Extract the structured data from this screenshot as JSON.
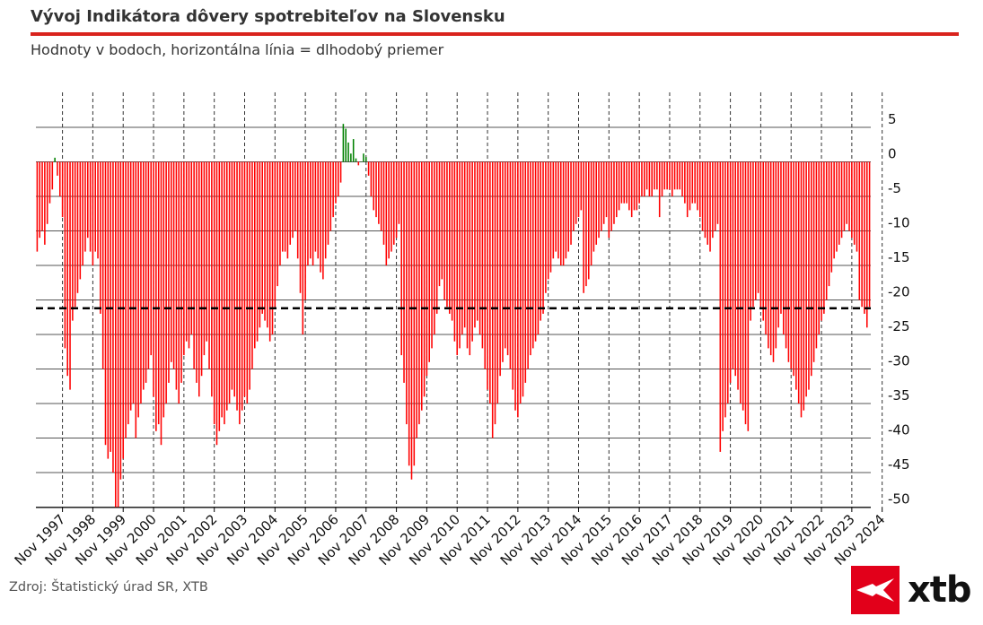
{
  "title": "Vývoj Indikátora dôvery spotrebiteľov na Slovensku",
  "subtitle": "Hodnoty v bodoch, horizontálna línia = dlhodobý priemer",
  "source": "Zdroj: Štatistický úrad SR, XTB",
  "logo": {
    "text": "xtb",
    "icon": "xtb-logo-icon"
  },
  "colors": {
    "accent": "#d9231d",
    "negative": "#ff0000",
    "positive": "#008000",
    "brand": "#e2001a"
  },
  "chart_data": {
    "type": "bar",
    "frequency": "monthly",
    "x_start": "1997-01",
    "x_end": "2024-12",
    "xlabel": "",
    "ylabel": "",
    "ylim": [
      -51,
      6
    ],
    "yticks": [
      5,
      0,
      -5,
      -10,
      -15,
      -20,
      -25,
      -30,
      -35,
      -40,
      -45,
      -50
    ],
    "y_axis_position": "right",
    "x_tick_labels": [
      "Nov 1997",
      "Nov 1998",
      "Nov 1999",
      "Nov 2000",
      "Nov 2001",
      "Nov 2002",
      "Nov 2003",
      "Nov 2004",
      "Nov 2005",
      "Nov 2006",
      "Nov 2007",
      "Nov 2008",
      "Nov 2009",
      "Nov 2010",
      "Nov 2011",
      "Nov 2012",
      "Nov 2013",
      "Nov 2014",
      "Nov 2015",
      "Nov 2016",
      "Nov 2017",
      "Nov 2018",
      "Nov 2019",
      "Nov 2020",
      "Nov 2021",
      "Nov 2022",
      "Nov 2023",
      "Nov 2024"
    ],
    "long_term_average": -21.2,
    "grid": true,
    "legend": "none",
    "values": [
      -13,
      -11,
      -10,
      -12,
      -9,
      -6,
      -4,
      0.6,
      -2,
      -5,
      -8,
      -27,
      -31,
      -33,
      -23,
      -21,
      -19,
      -17,
      -15,
      -13,
      -11,
      -13,
      -15,
      -13,
      -14,
      -22,
      -30,
      -41,
      -43,
      -42,
      -45,
      -50,
      -50,
      -46,
      -43,
      -40,
      -38,
      -36,
      -35,
      -40,
      -37,
      -35,
      -33,
      -32,
      -30,
      -28,
      -34,
      -39,
      -38,
      -41,
      -37,
      -35,
      -32,
      -29,
      -30,
      -33,
      -35,
      -32,
      -28,
      -26,
      -27,
      -25,
      -30,
      -32,
      -34,
      -31,
      -28,
      -26,
      -30,
      -34,
      -38,
      -41,
      -39,
      -37,
      -38,
      -36,
      -35,
      -33,
      -34,
      -36,
      -38,
      -36,
      -34,
      -35,
      -33,
      -30,
      -27,
      -26,
      -24,
      -22,
      -23,
      -24,
      -26,
      -25,
      -21,
      -18,
      -15,
      -13,
      -13,
      -14,
      -12,
      -11,
      -10,
      -14,
      -19,
      -25,
      -20,
      -15,
      -14,
      -15,
      -13,
      -14,
      -16,
      -17,
      -14,
      -12,
      -10,
      -8,
      -6,
      -5,
      -3,
      5.5,
      4.8,
      2.8,
      1.2,
      3.3,
      0.5,
      -0.5,
      0,
      1.2,
      0.7,
      -2,
      -5,
      -7,
      -8,
      -9,
      -10,
      -12,
      -15,
      -14,
      -13,
      -12,
      -11,
      -9,
      -28,
      -32,
      -38,
      -44,
      -46,
      -44,
      -40,
      -38,
      -36,
      -34,
      -31,
      -29,
      -27,
      -25,
      -22,
      -18,
      -17,
      -20,
      -21,
      -22,
      -23,
      -26,
      -28,
      -27,
      -25,
      -24,
      -27,
      -28,
      -26,
      -24,
      -23,
      -25,
      -27,
      -30,
      -33,
      -35,
      -40,
      -38,
      -35,
      -31,
      -29,
      -27,
      -28,
      -30,
      -33,
      -36,
      -37,
      -35,
      -34,
      -32,
      -30,
      -28,
      -27,
      -26,
      -25,
      -23,
      -22,
      -19,
      -17,
      -16,
      -14,
      -13,
      -14,
      -15,
      -15,
      -14,
      -13,
      -12,
      -10,
      -9,
      -8,
      -7,
      -19,
      -18,
      -17,
      -15,
      -13,
      -12,
      -11,
      -10,
      -9,
      -8,
      -11,
      -10,
      -9,
      -8,
      -7,
      -6,
      -6,
      -6,
      -7,
      -8,
      -7,
      -7,
      -6,
      -5,
      -5,
      -4,
      -5,
      -5,
      -4,
      -4,
      -8,
      -5,
      -4,
      -4,
      -4,
      -5,
      -4,
      -4,
      -4,
      -5,
      -6,
      -8,
      -7,
      -6,
      -6,
      -7,
      -8,
      -10,
      -11,
      -12,
      -13,
      -11,
      -10,
      -9,
      -42,
      -39,
      -37,
      -35,
      -32,
      -30,
      -31,
      -33,
      -35,
      -36,
      -38,
      -39,
      -23,
      -21,
      -20,
      -19,
      -21,
      -23,
      -25,
      -27,
      -28,
      -29,
      -27,
      -24,
      -22,
      -25,
      -27,
      -29,
      -30,
      -31,
      -33,
      -35,
      -37,
      -36,
      -34,
      -33,
      -31,
      -29,
      -27,
      -25,
      -23,
      -22,
      -20,
      -18,
      -16,
      -14,
      -13,
      -12,
      -11,
      -10,
      -9,
      -10,
      -11,
      -12,
      -13,
      -20,
      -21,
      -22,
      -24,
      -21
    ]
  }
}
